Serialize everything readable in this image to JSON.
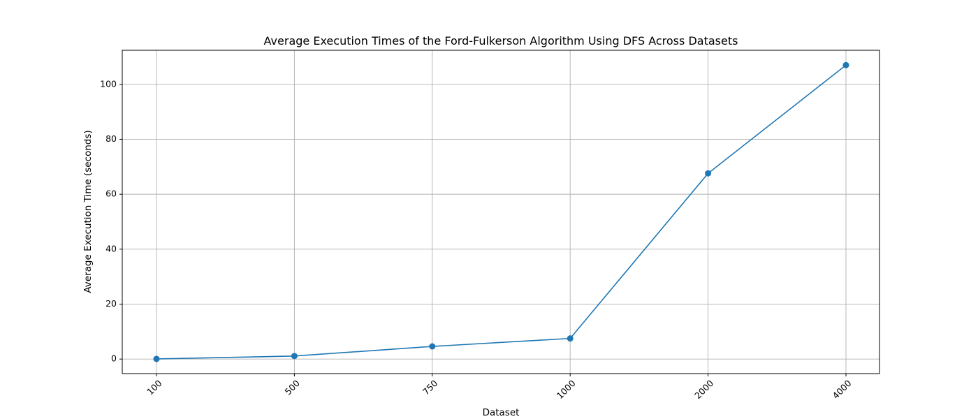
{
  "chart_data": {
    "type": "line",
    "title": "Average Execution Times of the Ford-Fulkerson Algorithm Using DFS Across Datasets",
    "xlabel": "Dataset",
    "ylabel": "Average Execution Time (seconds)",
    "categories": [
      "100",
      "500",
      "750",
      "1000",
      "2000",
      "4000"
    ],
    "series": [
      {
        "values": [
          0.05,
          1.1,
          4.6,
          7.5,
          67.6,
          107.0
        ]
      }
    ],
    "yticks": [
      0,
      20,
      40,
      60,
      80,
      100
    ],
    "ylim": [
      -5.3,
      112.4
    ],
    "grid": true,
    "marker": "circle",
    "x_tick_rotation": 45,
    "colors": {
      "series": "#1f77b4",
      "grid": "#b0b0b0",
      "axes": "#000000"
    }
  }
}
